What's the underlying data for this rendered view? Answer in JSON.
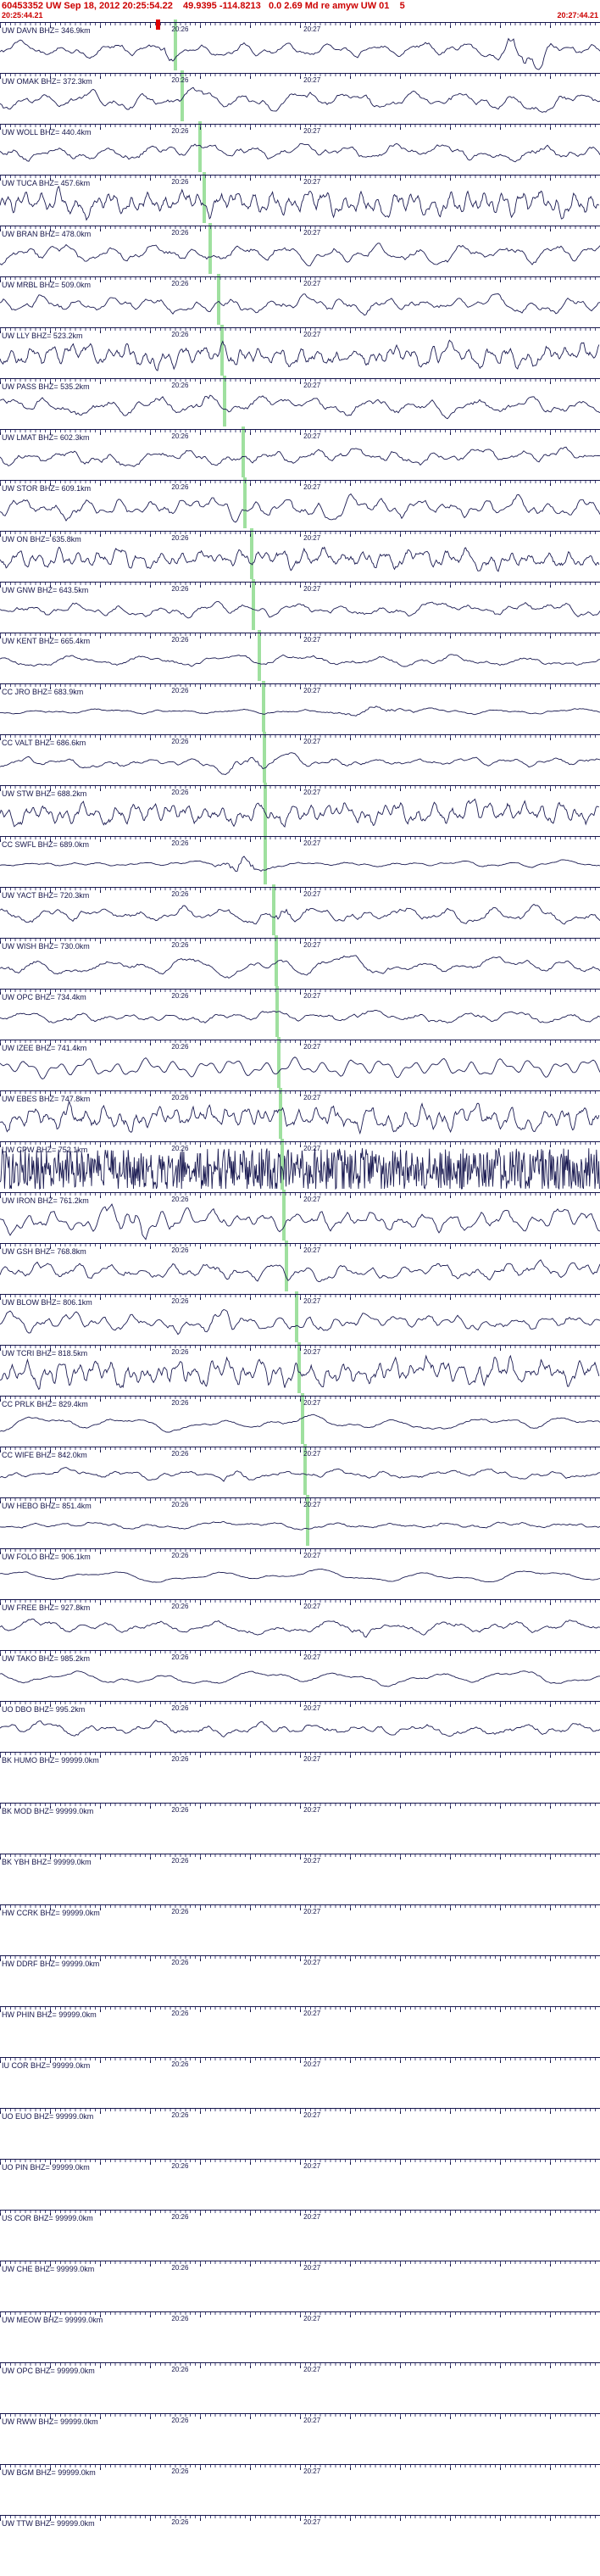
{
  "header": {
    "line1": "60453352 UW Sep 18, 2012 20:25:54.22    49.9395 -114.8213   0.0 2.69 Md re amyw UW 01    5",
    "window_start": "20:25:44.21",
    "window_end": "20:27:44.21",
    "accent_color": "#cc0000"
  },
  "axis": {
    "tick_labels": [
      "20:26",
      "20:27"
    ],
    "tick_pcts": [
      30,
      52
    ]
  },
  "colors": {
    "trace": "#1b1b52",
    "label": "#15154a",
    "green_marker": "#9fe09f",
    "red_marker": "#e00000",
    "header_red": "#cc0000"
  },
  "traces": [
    {
      "station": "UW DAVN BHZ= 346.9km",
      "style": "normal",
      "amp": 7,
      "freq": 0.12,
      "noise": 1,
      "bursts": [
        {
          "pct": 27,
          "w": 2,
          "amp": 10
        },
        {
          "pct": 88,
          "w": 5,
          "amp": 20
        }
      ],
      "green_pct": 29.0,
      "red_pct": 26
    },
    {
      "station": "UW OMAK BHZ= 372.3km",
      "style": "normal",
      "amp": 9,
      "freq": 0.1,
      "noise": 1,
      "bursts": [],
      "green_pct": 30.1,
      "red_pct": null
    },
    {
      "station": "UW WOLL BHZ= 440.4km",
      "style": "normal",
      "amp": 8,
      "freq": 0.11,
      "noise": 1,
      "bursts": [],
      "green_pct": 33.1,
      "red_pct": null
    },
    {
      "station": "UW TUCA BHZ= 457.6km",
      "style": "dense",
      "amp": 13,
      "freq": 0.3,
      "noise": 1,
      "bursts": [],
      "green_pct": 33.8,
      "red_pct": null
    },
    {
      "station": "UW BRAN BHZ= 478.0km",
      "style": "normal",
      "amp": 9,
      "freq": 0.12,
      "noise": 1,
      "bursts": [],
      "green_pct": 34.7,
      "red_pct": null
    },
    {
      "station": "UW MRBL BHZ= 509.0km",
      "style": "normal",
      "amp": 8,
      "freq": 0.14,
      "noise": 1,
      "bursts": [],
      "green_pct": 36.1,
      "red_pct": null
    },
    {
      "station": "UW LLY BHZ= 523.2km",
      "style": "dense",
      "amp": 11,
      "freq": 0.28,
      "noise": 1,
      "bursts": [],
      "green_pct": 36.7,
      "red_pct": null
    },
    {
      "station": "UW PASS BHZ= 535.2km",
      "style": "normal",
      "amp": 9,
      "freq": 0.1,
      "noise": 1,
      "bursts": [
        {
          "pct": 34,
          "w": 3,
          "amp": 8
        }
      ],
      "green_pct": 37.2,
      "red_pct": null
    },
    {
      "station": "UW LMAT BHZ= 602.3km",
      "style": "normal",
      "amp": 8,
      "freq": 0.13,
      "noise": 1,
      "bursts": [],
      "green_pct": 40.2,
      "red_pct": null
    },
    {
      "station": "UW STOR BHZ= 609.1km",
      "style": "normal",
      "amp": 10,
      "freq": 0.16,
      "noise": 1,
      "bursts": [],
      "green_pct": 40.5,
      "red_pct": null
    },
    {
      "station": "UW ON BHZ= 635.8km",
      "style": "dense",
      "amp": 10,
      "freq": 0.26,
      "noise": 1,
      "bursts": [],
      "green_pct": 41.6,
      "red_pct": null
    },
    {
      "station": "UW GNW BHZ= 643.5km",
      "style": "normal",
      "amp": 7,
      "freq": 0.12,
      "noise": 1,
      "bursts": [],
      "green_pct": 42.0,
      "red_pct": null
    },
    {
      "station": "UW KENT BHZ= 665.4km",
      "style": "normal",
      "amp": 6,
      "freq": 0.07,
      "noise": 0.8,
      "bursts": [],
      "green_pct": 42.9,
      "red_pct": null
    },
    {
      "station": "CC JRO BHZ= 683.9km",
      "style": "normal",
      "amp": 2.5,
      "freq": 0.08,
      "noise": 1,
      "bursts": [
        {
          "pct": 63,
          "w": 8,
          "amp": 6
        }
      ],
      "green_pct": 43.7,
      "red_pct": null
    },
    {
      "station": "CC VALT BHZ= 686.6km",
      "style": "normal",
      "amp": 5,
      "freq": 0.12,
      "noise": 1,
      "bursts": [
        {
          "pct": 42,
          "w": 10,
          "amp": 5
        }
      ],
      "green_pct": 43.8,
      "red_pct": null
    },
    {
      "station": "UW STW BHZ= 688.2km",
      "style": "dense",
      "amp": 11,
      "freq": 0.3,
      "noise": 1,
      "bursts": [],
      "green_pct": 43.9,
      "red_pct": null
    },
    {
      "station": "CC SWFL BHZ= 689.0km",
      "style": "normal",
      "amp": 2.5,
      "freq": 0.1,
      "noise": 1,
      "bursts": [
        {
          "pct": 40,
          "w": 5,
          "amp": 15
        }
      ],
      "green_pct": 43.9,
      "red_pct": null
    },
    {
      "station": "UW YACT BHZ= 720.3km",
      "style": "normal",
      "amp": 8,
      "freq": 0.12,
      "noise": 1,
      "bursts": [
        {
          "pct": 47,
          "w": 2,
          "amp": 12
        }
      ],
      "green_pct": 45.3,
      "red_pct": null
    },
    {
      "station": "UW WISH BHZ= 730.0km",
      "style": "normal",
      "amp": 10,
      "freq": 0.07,
      "noise": 0.7,
      "bursts": [],
      "green_pct": 45.7,
      "red_pct": null
    },
    {
      "station": "UW OPC BHZ= 734.4km",
      "style": "normal",
      "amp": 6,
      "freq": 0.11,
      "noise": 1,
      "bursts": [],
      "green_pct": 45.9,
      "red_pct": null
    },
    {
      "station": "UW IZEE BHZ= 741.4km",
      "style": "normal",
      "amp": 11,
      "freq": 0.18,
      "noise": 0.2,
      "bursts": [],
      "green_pct": 46.2,
      "red_pct": null
    },
    {
      "station": "UW EBES BHZ= 747.8km",
      "style": "dense",
      "amp": 12,
      "freq": 0.3,
      "noise": 1,
      "bursts": [],
      "green_pct": 46.5,
      "red_pct": null
    },
    {
      "station": "UW CPW BHZ= 752.1km",
      "style": "sat",
      "amp": 25,
      "freq": 0.35,
      "noise": 1,
      "bursts": [],
      "green_pct": 46.7,
      "red_pct": null
    },
    {
      "station": "UW IRON BHZ= 761.2km",
      "style": "normal",
      "amp": 10,
      "freq": 0.2,
      "noise": 1,
      "bursts": [
        {
          "pct": 22,
          "w": 6,
          "amp": 8
        }
      ],
      "green_pct": 47.1,
      "red_pct": null
    },
    {
      "station": "UW GSH BHZ= 768.8km",
      "style": "normal",
      "amp": 9,
      "freq": 0.16,
      "noise": 1,
      "bursts": [],
      "green_pct": 47.4,
      "red_pct": null
    },
    {
      "station": "UW BLOW BHZ= 806.1km",
      "style": "normal",
      "amp": 8,
      "freq": 0.18,
      "noise": 1,
      "bursts": [
        {
          "pct": 36,
          "w": 8,
          "amp": 6
        }
      ],
      "green_pct": 49.1,
      "red_pct": null
    },
    {
      "station": "UW TCRI BHZ= 818.5km",
      "style": "dense",
      "amp": 13,
      "freq": 0.32,
      "noise": 1,
      "bursts": [],
      "green_pct": 49.6,
      "red_pct": null
    },
    {
      "station": "CC PRLK BHZ= 829.4km",
      "style": "normal",
      "amp": 9,
      "freq": 0.06,
      "noise": 0.4,
      "bursts": [],
      "green_pct": 50.1,
      "red_pct": null
    },
    {
      "station": "CC WIFE BHZ= 842.0km",
      "style": "normal",
      "amp": 5,
      "freq": 0.1,
      "noise": 1,
      "bursts": [
        {
          "pct": 38,
          "w": 2,
          "amp": 10
        }
      ],
      "green_pct": 50.6,
      "red_pct": null
    },
    {
      "station": "UW HEBO BHZ= 851.4km",
      "style": "normal",
      "amp": 3.5,
      "freq": 0.09,
      "noise": 1,
      "bursts": [],
      "green_pct": 51.0,
      "red_pct": null
    },
    {
      "station": "UW FOLO BHZ= 906.1km",
      "style": "normal",
      "amp": 7,
      "freq": 0.05,
      "noise": 0.3,
      "bursts": [],
      "green_pct": null,
      "red_pct": null
    },
    {
      "station": "UW FREE BHZ= 927.8km",
      "style": "normal",
      "amp": 6,
      "freq": 0.09,
      "noise": 1,
      "bursts": [
        {
          "pct": 60,
          "w": 2,
          "amp": 10
        }
      ],
      "green_pct": null,
      "red_pct": null
    },
    {
      "station": "UW TAKO BHZ= 985.2km",
      "style": "normal",
      "amp": 8,
      "freq": 0.06,
      "noise": 0.4,
      "bursts": [],
      "green_pct": null,
      "red_pct": null
    },
    {
      "station": "UO DBO BHZ= 995.2km",
      "style": "normal",
      "amp": 7,
      "freq": 0.1,
      "noise": 1,
      "bursts": [],
      "green_pct": null,
      "red_pct": null
    },
    {
      "station": "BK HUMO BHZ= 99999.0km",
      "style": "none",
      "amp": 0,
      "freq": 0,
      "noise": 0,
      "bursts": [],
      "green_pct": null,
      "red_pct": null
    },
    {
      "station": "BK MOD BHZ= 99999.0km",
      "style": "none",
      "amp": 0,
      "freq": 0,
      "noise": 0,
      "bursts": [],
      "green_pct": null,
      "red_pct": null
    },
    {
      "station": "BK YBH BHZ= 99999.0km",
      "style": "none",
      "amp": 0,
      "freq": 0,
      "noise": 0,
      "bursts": [],
      "green_pct": null,
      "red_pct": null
    },
    {
      "station": "HW CCRK BHZ= 99999.0km",
      "style": "none",
      "amp": 0,
      "freq": 0,
      "noise": 0,
      "bursts": [],
      "green_pct": null,
      "red_pct": null
    },
    {
      "station": "HW DDRF BHZ= 99999.0km",
      "style": "none",
      "amp": 0,
      "freq": 0,
      "noise": 0,
      "bursts": [],
      "green_pct": null,
      "red_pct": null
    },
    {
      "station": "HW PHIN BHZ= 99999.0km",
      "style": "none",
      "amp": 0,
      "freq": 0,
      "noise": 0,
      "bursts": [],
      "green_pct": null,
      "red_pct": null
    },
    {
      "station": "IU COR BHZ= 99999.0km",
      "style": "none",
      "amp": 0,
      "freq": 0,
      "noise": 0,
      "bursts": [],
      "green_pct": null,
      "red_pct": null
    },
    {
      "station": "UO EUO BHZ= 99999.0km",
      "style": "none",
      "amp": 0,
      "freq": 0,
      "noise": 0,
      "bursts": [],
      "green_pct": null,
      "red_pct": null
    },
    {
      "station": "UO PIN BHZ= 99999.0km",
      "style": "none",
      "amp": 0,
      "freq": 0,
      "noise": 0,
      "bursts": [],
      "green_pct": null,
      "red_pct": null
    },
    {
      "station": "US COR BHZ= 99999.0km",
      "style": "none",
      "amp": 0,
      "freq": 0,
      "noise": 0,
      "bursts": [],
      "green_pct": null,
      "red_pct": null
    },
    {
      "station": "UW CHE BHZ= 99999.0km",
      "style": "none",
      "amp": 0,
      "freq": 0,
      "noise": 0,
      "bursts": [],
      "green_pct": null,
      "red_pct": null
    },
    {
      "station": "UW MEOW BHZ= 99999.0km",
      "style": "none",
      "amp": 0,
      "freq": 0,
      "noise": 0,
      "bursts": [],
      "green_pct": null,
      "red_pct": null
    },
    {
      "station": "UW OPC BHZ= 99999.0km",
      "style": "none",
      "amp": 0,
      "freq": 0,
      "noise": 0,
      "bursts": [],
      "green_pct": null,
      "red_pct": null
    },
    {
      "station": "UW RWW BHZ= 99999.0km",
      "style": "none",
      "amp": 0,
      "freq": 0,
      "noise": 0,
      "bursts": [],
      "green_pct": null,
      "red_pct": null
    },
    {
      "station": "UW BGM BHZ= 99999.0km",
      "style": "none",
      "amp": 0,
      "freq": 0,
      "noise": 0,
      "bursts": [],
      "green_pct": null,
      "red_pct": null
    },
    {
      "station": "UW TTW BHZ= 99999.0km",
      "style": "none",
      "amp": 0,
      "freq": 0,
      "noise": 0,
      "bursts": [],
      "green_pct": null,
      "red_pct": null
    }
  ]
}
